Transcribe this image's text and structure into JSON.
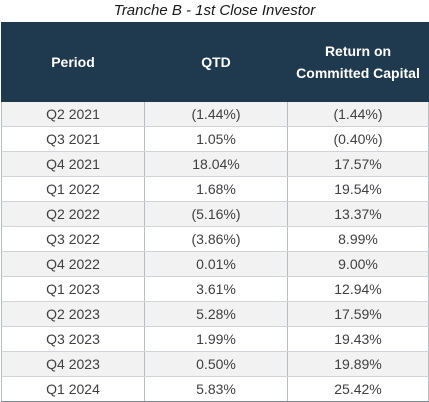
{
  "title": "Tranche B - 1st Close Investor",
  "headers": [
    "Period",
    "QTD",
    "Return on Committed Capital"
  ],
  "rows": [
    {
      "period": "Q2 2021",
      "qtd": "(1.44%)",
      "rocc": "(1.44%)"
    },
    {
      "period": "Q3 2021",
      "qtd": "1.05%",
      "rocc": "(0.40%)"
    },
    {
      "period": "Q4 2021",
      "qtd": "18.04%",
      "rocc": "17.57%"
    },
    {
      "period": "Q1 2022",
      "qtd": "1.68%",
      "rocc": "19.54%"
    },
    {
      "period": "Q2 2022",
      "qtd": "(5.16%)",
      "rocc": "13.37%"
    },
    {
      "period": "Q3 2022",
      "qtd": "(3.86%)",
      "rocc": "8.99%"
    },
    {
      "period": "Q4 2022",
      "qtd": "0.01%",
      "rocc": "9.00%"
    },
    {
      "period": "Q1 2023",
      "qtd": "3.61%",
      "rocc": "12.94%"
    },
    {
      "period": "Q2 2023",
      "qtd": "5.28%",
      "rocc": "17.59%"
    },
    {
      "period": "Q3 2023",
      "qtd": "1.99%",
      "rocc": "19.43%"
    },
    {
      "period": "Q4 2023",
      "qtd": "0.50%",
      "rocc": "19.89%"
    },
    {
      "period": "Q1 2024",
      "qtd": "5.83%",
      "rocc": "25.42%"
    }
  ],
  "colors": {
    "header_bg": "#1f3a4e",
    "header_text": "#ffffff",
    "row_band": "#f2f2f2",
    "body_text": "#404040"
  }
}
